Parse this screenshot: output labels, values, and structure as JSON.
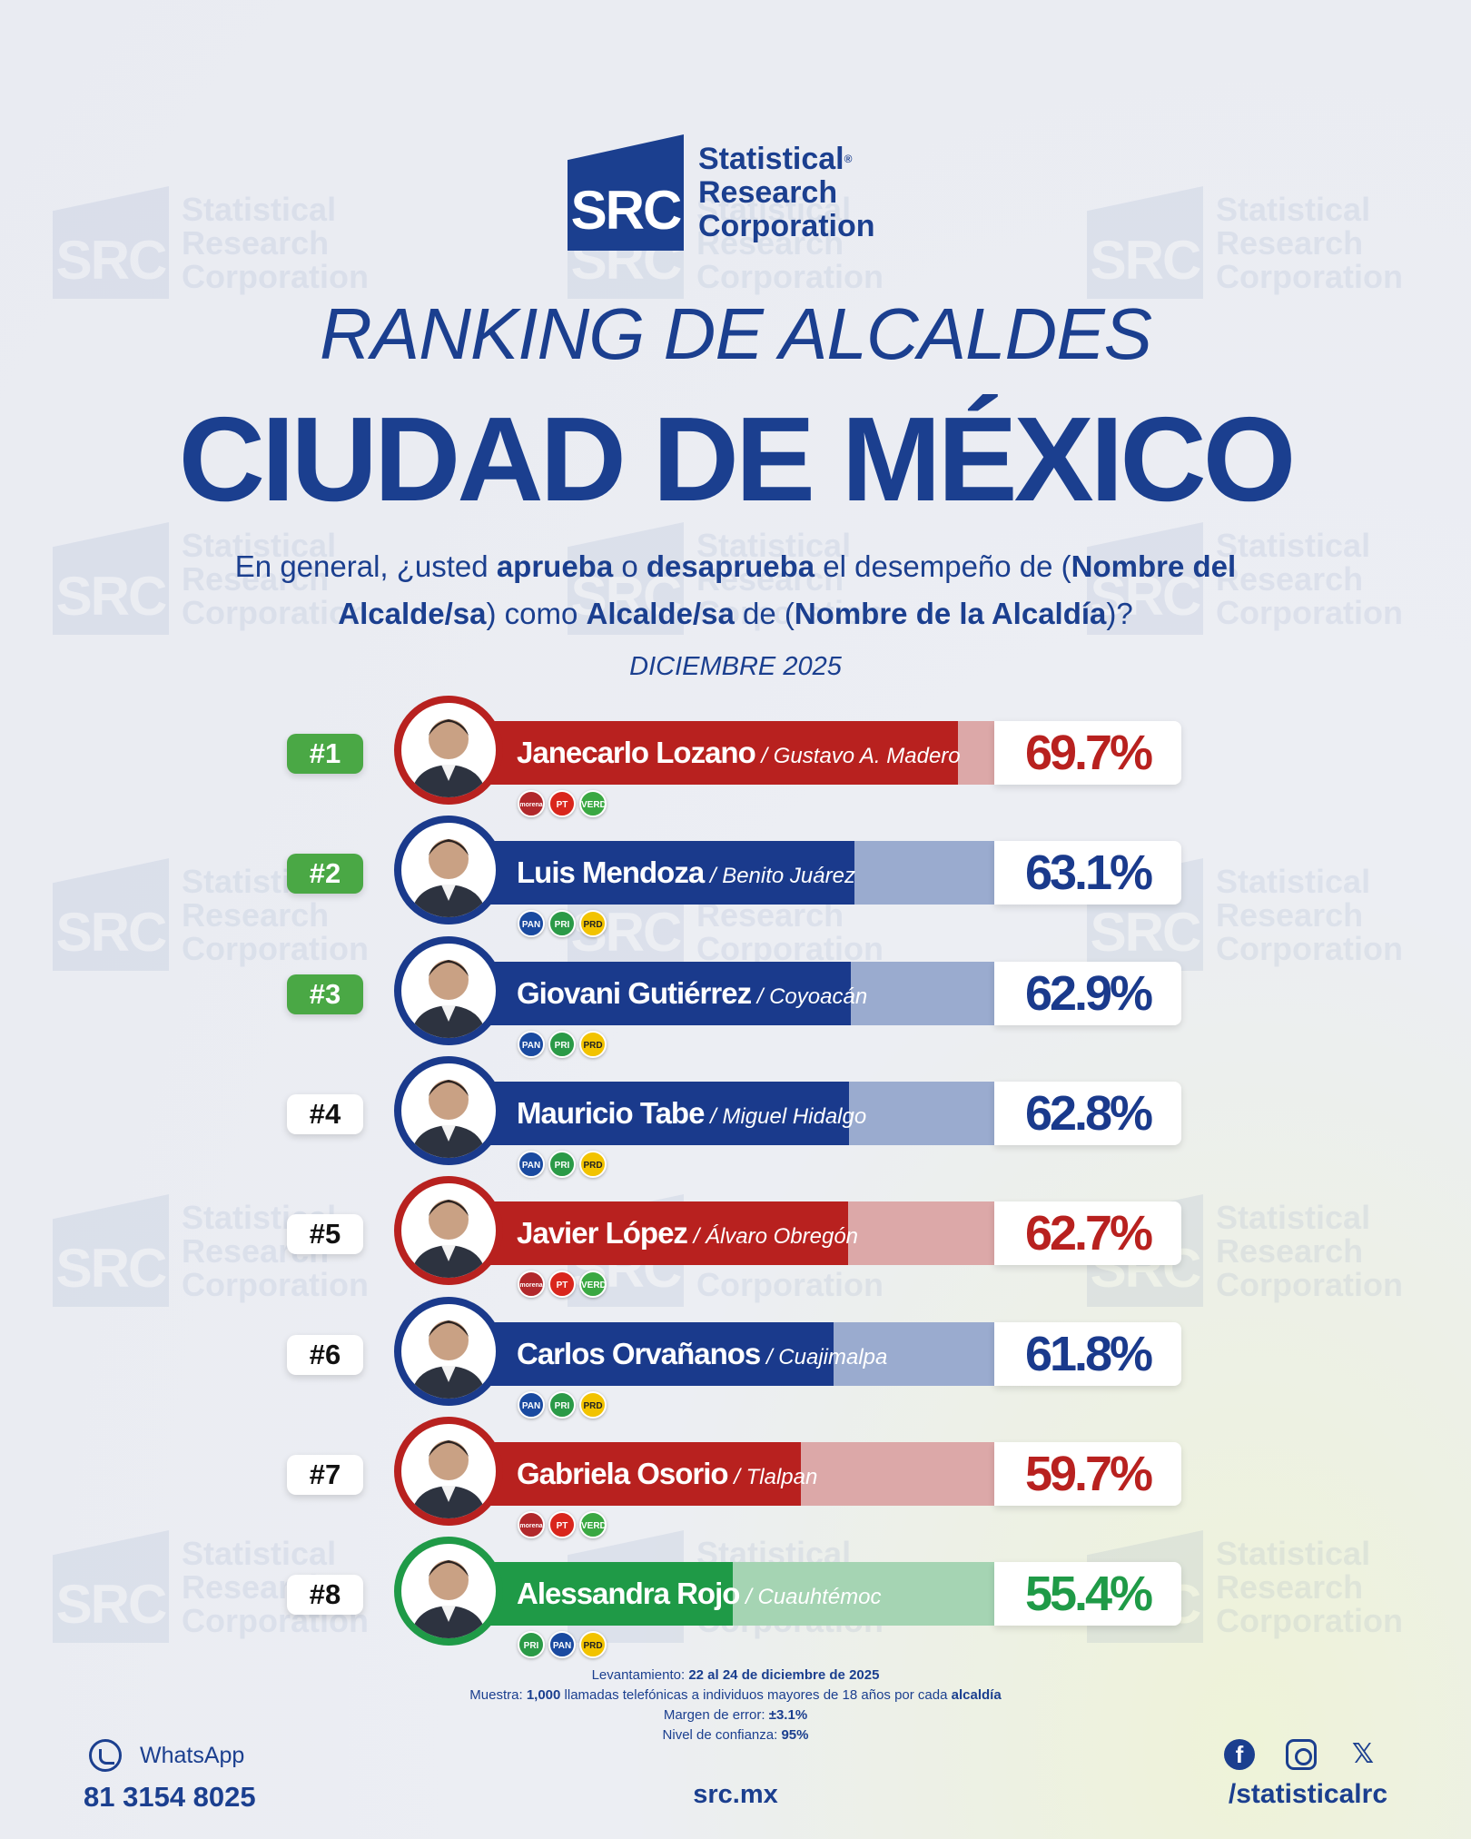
{
  "brand": {
    "logo_mark": "SRC",
    "line1": "Statistical",
    "line2": "Research",
    "line3": "Corporation",
    "registered": "®",
    "color": "#1b3f8f"
  },
  "title": "RANKING DE ALCALDES",
  "subtitle": "CIUDAD DE MÉXICO",
  "question": {
    "p1": "En general, ¿usted ",
    "b1": "aprueba",
    "p2": " o ",
    "b2": "desaprueba",
    "p3": " el desempeño de (",
    "b3": "Nombre del Alcalde/sa",
    "p4": ") como ",
    "b4": "Alcalde/sa",
    "p5": " de (",
    "b5": "Nombre de la Alcaldía",
    "p6": ")?"
  },
  "date": "DICIEMBRE 2025",
  "chart_data": {
    "type": "bar",
    "orientation": "horizontal",
    "unit": "%",
    "xlim": [
      0,
      100
    ],
    "categories": [
      "Janecarlo Lozano",
      "Luis Mendoza",
      "Giovani Gutiérrez",
      "Mauricio Tabe",
      "Javier López",
      "Carlos Orvañanos",
      "Gabriela Osorio",
      "Alessandra Rojo"
    ],
    "values": [
      69.7,
      63.1,
      62.9,
      62.8,
      62.7,
      61.8,
      59.7,
      55.4
    ],
    "rows": [
      {
        "rank": "#1",
        "name": "Janecarlo Lozano",
        "alcaldia": "Gustavo A. Madero",
        "value": 69.7,
        "label": "69.7%",
        "color": "#b8211f",
        "light": "#dca8a8",
        "parties": [
          "morena",
          "PT",
          "VERDE"
        ],
        "top": true
      },
      {
        "rank": "#2",
        "name": "Luis Mendoza",
        "alcaldia": "Benito Juárez",
        "value": 63.1,
        "label": "63.1%",
        "color": "#1a3a8c",
        "light": "#9aabcf",
        "parties": [
          "PAN",
          "PRI",
          "PRD"
        ],
        "top": true
      },
      {
        "rank": "#3",
        "name": "Giovani Gutiérrez",
        "alcaldia": "Coyoacán",
        "value": 62.9,
        "label": "62.9%",
        "color": "#1a3a8c",
        "light": "#9aabcf",
        "parties": [
          "PAN",
          "PRI",
          "PRD"
        ],
        "top": true
      },
      {
        "rank": "#4",
        "name": "Mauricio Tabe",
        "alcaldia": "Miguel Hidalgo",
        "value": 62.8,
        "label": "62.8%",
        "color": "#1a3a8c",
        "light": "#9aabcf",
        "parties": [
          "PAN",
          "PRI",
          "PRD"
        ],
        "top": false
      },
      {
        "rank": "#5",
        "name": "Javier López",
        "alcaldia": "Álvaro Obregón",
        "value": 62.7,
        "label": "62.7%",
        "color": "#b8211f",
        "light": "#dca8a8",
        "parties": [
          "morena",
          "PT",
          "VERDE"
        ],
        "top": false
      },
      {
        "rank": "#6",
        "name": "Carlos Orvañanos",
        "alcaldia": "Cuajimalpa",
        "value": 61.8,
        "label": "61.8%",
        "color": "#1a3a8c",
        "light": "#9aabcf",
        "parties": [
          "PAN",
          "PRI",
          "PRD"
        ],
        "top": false
      },
      {
        "rank": "#7",
        "name": "Gabriela Osorio",
        "alcaldia": "Tlalpan",
        "value": 59.7,
        "label": "59.7%",
        "color": "#b8211f",
        "light": "#dca8a8",
        "parties": [
          "morena",
          "PT",
          "VERDE"
        ],
        "top": false
      },
      {
        "rank": "#8",
        "name": "Alessandra Rojo",
        "alcaldia": "Cuauhtémoc",
        "value": 55.4,
        "label": "55.4%",
        "color": "#1f9a47",
        "light": "#a5d4b3",
        "parties": [
          "PRI",
          "PAN",
          "PRD"
        ],
        "top": false
      }
    ]
  },
  "party_colors": {
    "morena": "#b1282b",
    "PT": "#d9261c",
    "VERDE": "#3aa842",
    "PAN": "#1a4aa0",
    "PRI": "#2b9a47",
    "PRD": "#f2c300"
  },
  "notes": {
    "l1_label": "Levantamiento: ",
    "l1_value": "22 al 24 de diciembre de 2025",
    "l2_label": "Muestra: ",
    "l2_value": "1,000",
    "l2_rest": " llamadas telefónicas a individuos mayores de 18 años por cada ",
    "l2_bold": "alcaldía",
    "l3_label": "Margen de error: ",
    "l3_value": "±3.1%",
    "l4_label": "Nivel de confianza: ",
    "l4_value": "95%"
  },
  "footer": {
    "whatsapp_label": "WhatsApp",
    "phone": "81 3154 8025",
    "site": "src.mx",
    "handle": "/statisticalrc",
    "icons": [
      "whatsapp-icon",
      "facebook-icon",
      "instagram-icon",
      "x-icon"
    ]
  }
}
